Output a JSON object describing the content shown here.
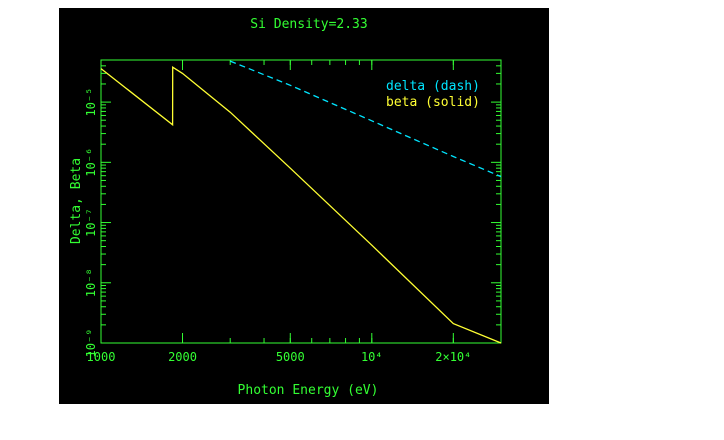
{
  "chart_data": {
    "type": "line",
    "title": "Si Density=2.33",
    "xlabel": "Photon Energy (eV)",
    "ylabel": "Delta, Beta",
    "x_scale": "log",
    "y_scale": "log",
    "xlim": [
      1000,
      30000
    ],
    "ylim": [
      1e-09,
      5e-05
    ],
    "x_ticks": [
      {
        "value": 1000,
        "label": "1000"
      },
      {
        "value": 2000,
        "label": "2000"
      },
      {
        "value": 5000,
        "label": "5000"
      },
      {
        "value": 10000,
        "label": "10⁴"
      },
      {
        "value": 20000,
        "label": "2×10⁴"
      }
    ],
    "y_ticks": [
      {
        "value": 1e-09,
        "label": "10⁻⁹"
      },
      {
        "value": 1e-08,
        "label": "10⁻⁸"
      },
      {
        "value": 1e-07,
        "label": "10⁻⁷"
      },
      {
        "value": 1e-06,
        "label": "10⁻⁶"
      },
      {
        "value": 1e-05,
        "label": "10⁻⁵"
      }
    ],
    "legend": {
      "placement": "top-right",
      "entries": [
        {
          "label": "delta (dash)",
          "color": "#00e5ff"
        },
        {
          "label": "beta (solid)",
          "color": "#ffff33"
        }
      ]
    },
    "series": [
      {
        "name": "delta",
        "style": "dashed",
        "color": "#00e5ff",
        "x": [
          3000,
          5000,
          10000,
          20000,
          30000
        ],
        "y": [
          4.8e-05,
          1.9e-05,
          4.9e-06,
          1.25e-06,
          5.8e-07
        ]
      },
      {
        "name": "beta",
        "style": "solid",
        "color": "#ffff33",
        "x": [
          1000,
          1838,
          1840,
          2000,
          3000,
          5000,
          10000,
          20000,
          30000
        ],
        "y": [
          3.6e-05,
          4.2e-06,
          3.8e-05,
          3e-05,
          6.8e-06,
          8e-07,
          4.2e-08,
          2.1e-09,
          1e-09
        ]
      }
    ],
    "axis_color": "#33ff33",
    "background": "#000000"
  }
}
